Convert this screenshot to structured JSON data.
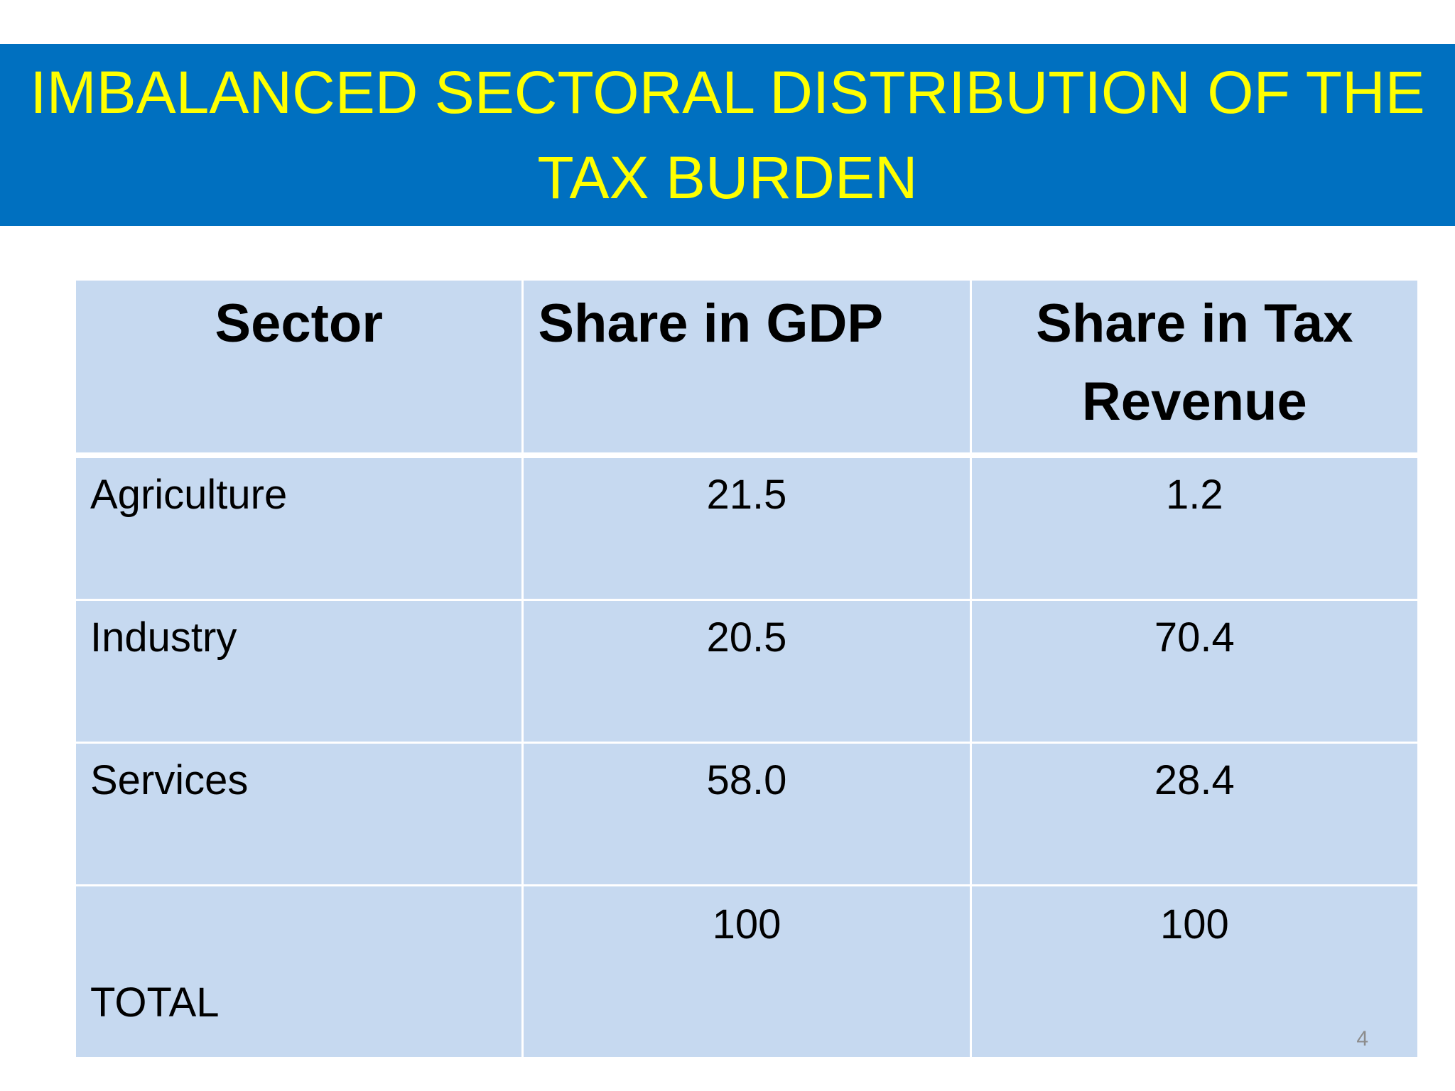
{
  "slide": {
    "title_line1": "IMBALANCED SECTORAL DISTRIBUTION OF THE",
    "title_line2": "TAX BURDEN",
    "page_number": "4"
  },
  "colors": {
    "title_band": "#0070c0",
    "title_text": "#ffff00",
    "table_cell": "#c6d9f0"
  },
  "table": {
    "headers": [
      "Sector",
      "Share in GDP",
      "Share in Tax Revenue"
    ],
    "rows": [
      {
        "sector": "Agriculture",
        "gdp": "21.5",
        "tax": "1.2"
      },
      {
        "sector": "Industry",
        "gdp": "20.5",
        "tax": "70.4"
      },
      {
        "sector": "Services",
        "gdp": "58.0",
        "tax": "28.4"
      },
      {
        "sector": "TOTAL",
        "gdp": "100",
        "tax": "100"
      }
    ]
  }
}
